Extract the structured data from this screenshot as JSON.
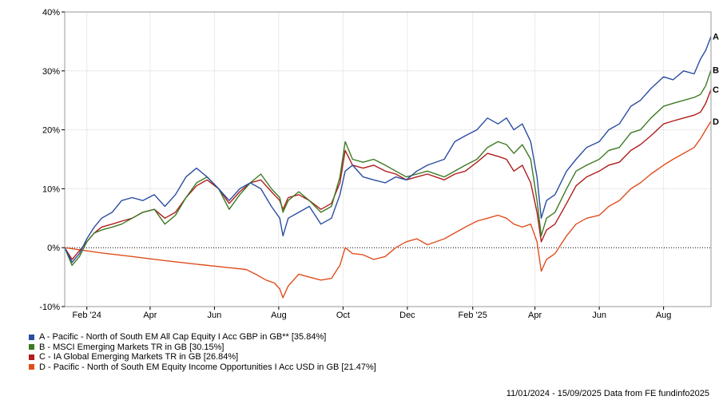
{
  "chart_data": {
    "type": "line",
    "y_ticks": [
      "40%",
      "30%",
      "20%",
      "10%",
      "0%",
      "-10%"
    ],
    "y_tick_values": [
      40,
      30,
      20,
      10,
      0,
      -10
    ],
    "ylim": [
      -10,
      40
    ],
    "x_ticks": [
      "Feb '24",
      "Apr",
      "Jun",
      "Aug",
      "Oct",
      "Dec",
      "Feb '25",
      "Apr",
      "Jun",
      "Aug"
    ],
    "x_tick_dates": [
      "2024-02-01",
      "2024-04-01",
      "2024-06-01",
      "2024-08-01",
      "2024-10-01",
      "2024-12-01",
      "2025-02-01",
      "2025-04-01",
      "2025-06-01",
      "2025-08-01"
    ],
    "x_range": [
      "2024-01-11",
      "2025-09-15"
    ],
    "grid": true,
    "zero_line": "dotted",
    "legend_position": "bottom-left",
    "series": [
      {
        "name": "A - Pacific - North of South EM All Cap Equity I Acc GBP in GB** [35.84%]",
        "end_label": "A",
        "color": "#2a4da0",
        "points": [
          [
            "2024-01-11",
            0
          ],
          [
            "2024-01-18",
            -2.5
          ],
          [
            "2024-01-25",
            -1
          ],
          [
            "2024-02-01",
            1.5
          ],
          [
            "2024-02-08",
            3.5
          ],
          [
            "2024-02-15",
            5
          ],
          [
            "2024-02-25",
            6
          ],
          [
            "2024-03-05",
            8
          ],
          [
            "2024-03-15",
            8.5
          ],
          [
            "2024-03-25",
            8
          ],
          [
            "2024-04-05",
            9
          ],
          [
            "2024-04-15",
            7
          ],
          [
            "2024-04-25",
            9
          ],
          [
            "2024-05-05",
            12
          ],
          [
            "2024-05-15",
            13.5
          ],
          [
            "2024-05-25",
            12
          ],
          [
            "2024-06-05",
            10
          ],
          [
            "2024-06-15",
            8
          ],
          [
            "2024-06-25",
            10
          ],
          [
            "2024-07-05",
            11
          ],
          [
            "2024-07-15",
            10
          ],
          [
            "2024-07-25",
            7
          ],
          [
            "2024-08-02",
            5
          ],
          [
            "2024-08-05",
            2
          ],
          [
            "2024-08-10",
            5
          ],
          [
            "2024-08-20",
            6
          ],
          [
            "2024-08-30",
            7
          ],
          [
            "2024-09-10",
            4
          ],
          [
            "2024-09-20",
            5
          ],
          [
            "2024-09-28",
            9
          ],
          [
            "2024-10-03",
            13
          ],
          [
            "2024-10-10",
            14
          ],
          [
            "2024-10-20",
            12
          ],
          [
            "2024-10-30",
            11.5
          ],
          [
            "2024-11-10",
            11
          ],
          [
            "2024-11-20",
            12
          ],
          [
            "2024-11-30",
            11.5
          ],
          [
            "2024-12-10",
            13
          ],
          [
            "2024-12-20",
            14
          ],
          [
            "2025-01-05",
            15
          ],
          [
            "2025-01-15",
            18
          ],
          [
            "2025-01-25",
            19
          ],
          [
            "2025-02-05",
            20
          ],
          [
            "2025-02-15",
            22
          ],
          [
            "2025-02-25",
            21
          ],
          [
            "2025-03-05",
            22
          ],
          [
            "2025-03-12",
            20
          ],
          [
            "2025-03-20",
            21
          ],
          [
            "2025-03-28",
            18
          ],
          [
            "2025-04-03",
            12
          ],
          [
            "2025-04-07",
            5
          ],
          [
            "2025-04-12",
            8
          ],
          [
            "2025-04-20",
            9
          ],
          [
            "2025-05-01",
            13
          ],
          [
            "2025-05-10",
            15
          ],
          [
            "2025-05-20",
            17
          ],
          [
            "2025-06-01",
            18
          ],
          [
            "2025-06-10",
            20
          ],
          [
            "2025-06-20",
            21
          ],
          [
            "2025-07-01",
            24
          ],
          [
            "2025-07-10",
            25
          ],
          [
            "2025-07-20",
            27
          ],
          [
            "2025-08-01",
            29
          ],
          [
            "2025-08-10",
            28.5
          ],
          [
            "2025-08-20",
            30
          ],
          [
            "2025-08-30",
            29.5
          ],
          [
            "2025-09-05",
            32
          ],
          [
            "2025-09-10",
            33.5
          ],
          [
            "2025-09-15",
            35.84
          ]
        ]
      },
      {
        "name": "B - MSCI Emerging Markets TR in GB [30.15%]",
        "end_label": "B",
        "color": "#3d7a23",
        "points": [
          [
            "2024-01-11",
            0
          ],
          [
            "2024-01-18",
            -3
          ],
          [
            "2024-01-25",
            -1.5
          ],
          [
            "2024-02-01",
            1
          ],
          [
            "2024-02-08",
            2.5
          ],
          [
            "2024-02-15",
            3
          ],
          [
            "2024-02-25",
            3.5
          ],
          [
            "2024-03-05",
            4
          ],
          [
            "2024-03-15",
            5
          ],
          [
            "2024-03-25",
            6
          ],
          [
            "2024-04-05",
            6.5
          ],
          [
            "2024-04-15",
            4
          ],
          [
            "2024-04-25",
            5.5
          ],
          [
            "2024-05-05",
            8.5
          ],
          [
            "2024-05-15",
            11
          ],
          [
            "2024-05-25",
            12
          ],
          [
            "2024-06-05",
            10
          ],
          [
            "2024-06-15",
            6.5
          ],
          [
            "2024-06-25",
            9
          ],
          [
            "2024-07-05",
            11
          ],
          [
            "2024-07-15",
            12.5
          ],
          [
            "2024-07-25",
            10
          ],
          [
            "2024-08-02",
            8.5
          ],
          [
            "2024-08-05",
            6
          ],
          [
            "2024-08-10",
            8
          ],
          [
            "2024-08-20",
            9.5
          ],
          [
            "2024-08-30",
            8
          ],
          [
            "2024-09-10",
            6
          ],
          [
            "2024-09-20",
            7
          ],
          [
            "2024-09-28",
            12
          ],
          [
            "2024-10-03",
            18
          ],
          [
            "2024-10-10",
            15
          ],
          [
            "2024-10-20",
            14.5
          ],
          [
            "2024-10-30",
            15
          ],
          [
            "2024-11-10",
            14
          ],
          [
            "2024-11-20",
            13
          ],
          [
            "2024-11-30",
            12
          ],
          [
            "2024-12-10",
            12.5
          ],
          [
            "2024-12-20",
            13
          ],
          [
            "2025-01-05",
            12
          ],
          [
            "2025-01-15",
            13
          ],
          [
            "2025-01-25",
            14
          ],
          [
            "2025-02-05",
            15
          ],
          [
            "2025-02-15",
            17
          ],
          [
            "2025-02-25",
            18
          ],
          [
            "2025-03-05",
            17.5
          ],
          [
            "2025-03-12",
            16
          ],
          [
            "2025-03-20",
            17.5
          ],
          [
            "2025-03-28",
            15
          ],
          [
            "2025-04-03",
            8
          ],
          [
            "2025-04-07",
            2
          ],
          [
            "2025-04-12",
            5
          ],
          [
            "2025-04-20",
            6
          ],
          [
            "2025-05-01",
            10
          ],
          [
            "2025-05-10",
            13
          ],
          [
            "2025-05-20",
            14
          ],
          [
            "2025-06-01",
            15
          ],
          [
            "2025-06-10",
            16.5
          ],
          [
            "2025-06-20",
            17
          ],
          [
            "2025-07-01",
            19.5
          ],
          [
            "2025-07-10",
            20
          ],
          [
            "2025-07-20",
            22
          ],
          [
            "2025-08-01",
            24
          ],
          [
            "2025-08-10",
            24.5
          ],
          [
            "2025-08-20",
            25
          ],
          [
            "2025-08-30",
            25.5
          ],
          [
            "2025-09-05",
            26
          ],
          [
            "2025-09-10",
            27.5
          ],
          [
            "2025-09-15",
            30.15
          ]
        ]
      },
      {
        "name": "C - IA Global Emerging Markets TR in GB [26.84%]",
        "end_label": "C",
        "color": "#b11c1c",
        "points": [
          [
            "2024-01-11",
            0
          ],
          [
            "2024-01-18",
            -2
          ],
          [
            "2024-01-25",
            -0.5
          ],
          [
            "2024-02-01",
            1
          ],
          [
            "2024-02-08",
            2.5
          ],
          [
            "2024-02-15",
            3.5
          ],
          [
            "2024-02-25",
            4
          ],
          [
            "2024-03-05",
            4.5
          ],
          [
            "2024-03-15",
            5
          ],
          [
            "2024-03-25",
            6
          ],
          [
            "2024-04-05",
            6.5
          ],
          [
            "2024-04-15",
            5
          ],
          [
            "2024-04-25",
            6
          ],
          [
            "2024-05-05",
            8.5
          ],
          [
            "2024-05-15",
            10.5
          ],
          [
            "2024-05-25",
            11.5
          ],
          [
            "2024-06-05",
            10
          ],
          [
            "2024-06-15",
            7.5
          ],
          [
            "2024-06-25",
            9.5
          ],
          [
            "2024-07-05",
            11
          ],
          [
            "2024-07-15",
            11.5
          ],
          [
            "2024-07-25",
            9.5
          ],
          [
            "2024-08-02",
            8
          ],
          [
            "2024-08-05",
            6.5
          ],
          [
            "2024-08-10",
            8.5
          ],
          [
            "2024-08-20",
            9
          ],
          [
            "2024-08-30",
            8
          ],
          [
            "2024-09-10",
            6.5
          ],
          [
            "2024-09-20",
            7.5
          ],
          [
            "2024-09-28",
            11
          ],
          [
            "2024-10-03",
            16.5
          ],
          [
            "2024-10-10",
            14
          ],
          [
            "2024-10-20",
            13.5
          ],
          [
            "2024-10-30",
            14
          ],
          [
            "2024-11-10",
            13
          ],
          [
            "2024-11-20",
            12.5
          ],
          [
            "2024-11-30",
            11.5
          ],
          [
            "2024-12-10",
            12
          ],
          [
            "2024-12-20",
            12.5
          ],
          [
            "2025-01-05",
            11.5
          ],
          [
            "2025-01-15",
            12.5
          ],
          [
            "2025-01-25",
            13
          ],
          [
            "2025-02-05",
            14.5
          ],
          [
            "2025-02-15",
            16
          ],
          [
            "2025-02-25",
            15.5
          ],
          [
            "2025-03-05",
            15
          ],
          [
            "2025-03-12",
            13
          ],
          [
            "2025-03-20",
            14
          ],
          [
            "2025-03-28",
            11
          ],
          [
            "2025-04-03",
            6
          ],
          [
            "2025-04-07",
            1
          ],
          [
            "2025-04-12",
            3
          ],
          [
            "2025-04-20",
            4
          ],
          [
            "2025-05-01",
            7.5
          ],
          [
            "2025-05-10",
            10.5
          ],
          [
            "2025-05-20",
            12
          ],
          [
            "2025-06-01",
            13
          ],
          [
            "2025-06-10",
            14
          ],
          [
            "2025-06-20",
            14.5
          ],
          [
            "2025-07-01",
            16.5
          ],
          [
            "2025-07-10",
            17.5
          ],
          [
            "2025-07-20",
            19
          ],
          [
            "2025-08-01",
            21
          ],
          [
            "2025-08-10",
            21.5
          ],
          [
            "2025-08-20",
            22
          ],
          [
            "2025-08-30",
            22.5
          ],
          [
            "2025-09-05",
            23
          ],
          [
            "2025-09-10",
            24.5
          ],
          [
            "2025-09-15",
            26.84
          ]
        ]
      },
      {
        "name": "D - Pacific - North of South EM Equity Income Opportunities I Acc USD in GB [21.47%]",
        "end_label": "D",
        "color": "#e04e1c",
        "points": [
          [
            "2024-01-11",
            0
          ],
          [
            "2024-02-15",
            -0.9
          ],
          [
            "2024-03-15",
            -1.5
          ],
          [
            "2024-04-15",
            -2.2
          ],
          [
            "2024-05-15",
            -2.8
          ],
          [
            "2024-06-15",
            -3.4
          ],
          [
            "2024-07-01",
            -3.7
          ],
          [
            "2024-07-10",
            -4.5
          ],
          [
            "2024-07-20",
            -5.5
          ],
          [
            "2024-07-28",
            -6
          ],
          [
            "2024-08-02",
            -7
          ],
          [
            "2024-08-05",
            -8.5
          ],
          [
            "2024-08-10",
            -6.5
          ],
          [
            "2024-08-20",
            -4.5
          ],
          [
            "2024-08-30",
            -5
          ],
          [
            "2024-09-10",
            -5.5
          ],
          [
            "2024-09-20",
            -5.2
          ],
          [
            "2024-09-28",
            -3
          ],
          [
            "2024-10-03",
            0
          ],
          [
            "2024-10-10",
            -1
          ],
          [
            "2024-10-20",
            -1.2
          ],
          [
            "2024-10-30",
            -2
          ],
          [
            "2024-11-10",
            -1.5
          ],
          [
            "2024-11-20",
            0
          ],
          [
            "2024-11-30",
            1
          ],
          [
            "2024-12-10",
            1.5
          ],
          [
            "2024-12-20",
            0.5
          ],
          [
            "2025-01-05",
            1.5
          ],
          [
            "2025-01-15",
            2.5
          ],
          [
            "2025-01-25",
            3.5
          ],
          [
            "2025-02-05",
            4.5
          ],
          [
            "2025-02-15",
            5
          ],
          [
            "2025-02-25",
            5.5
          ],
          [
            "2025-03-05",
            5
          ],
          [
            "2025-03-12",
            4
          ],
          [
            "2025-03-20",
            3.5
          ],
          [
            "2025-03-28",
            4
          ],
          [
            "2025-04-03",
            1
          ],
          [
            "2025-04-07",
            -4
          ],
          [
            "2025-04-12",
            -2
          ],
          [
            "2025-04-20",
            -1
          ],
          [
            "2025-05-01",
            2
          ],
          [
            "2025-05-10",
            4
          ],
          [
            "2025-05-20",
            5
          ],
          [
            "2025-06-01",
            5.5
          ],
          [
            "2025-06-10",
            7
          ],
          [
            "2025-06-20",
            8
          ],
          [
            "2025-07-01",
            10
          ],
          [
            "2025-07-10",
            11
          ],
          [
            "2025-07-20",
            12.5
          ],
          [
            "2025-08-01",
            14
          ],
          [
            "2025-08-10",
            15
          ],
          [
            "2025-08-20",
            16
          ],
          [
            "2025-08-30",
            17
          ],
          [
            "2025-09-05",
            18.5
          ],
          [
            "2025-09-10",
            20
          ],
          [
            "2025-09-15",
            21.47
          ]
        ]
      }
    ],
    "footer": "11/01/2024 - 15/09/2025 Data from FE fundinfo2025"
  }
}
